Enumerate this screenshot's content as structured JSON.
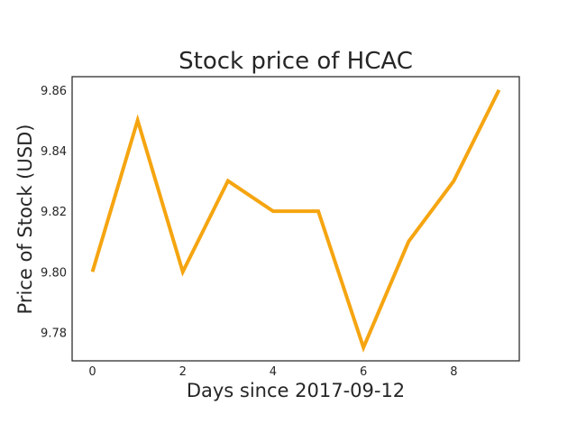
{
  "chart_data": {
    "type": "line",
    "title": "Stock price of HCAC",
    "xlabel": "Days since 2017-09-12",
    "ylabel": "Price of Stock (USD)",
    "xlim": [
      -0.45,
      9.45
    ],
    "ylim": [
      9.7706,
      9.8644
    ],
    "xticks": [
      0,
      2,
      4,
      6,
      8
    ],
    "xtick_labels": [
      "0",
      "2",
      "4",
      "6",
      "8"
    ],
    "yticks": [
      9.78,
      9.8,
      9.82,
      9.84,
      9.86
    ],
    "ytick_labels": [
      "9.78",
      "9.80",
      "9.82",
      "9.84",
      "9.86"
    ],
    "grid": false,
    "series": [
      {
        "color": "#f5a511",
        "x": [
          0,
          1,
          2,
          3,
          4,
          5,
          6,
          7,
          8,
          9
        ],
        "y": [
          9.8,
          9.85,
          9.8,
          9.83,
          9.82,
          9.82,
          9.775,
          9.81,
          9.83,
          9.86
        ]
      }
    ]
  }
}
